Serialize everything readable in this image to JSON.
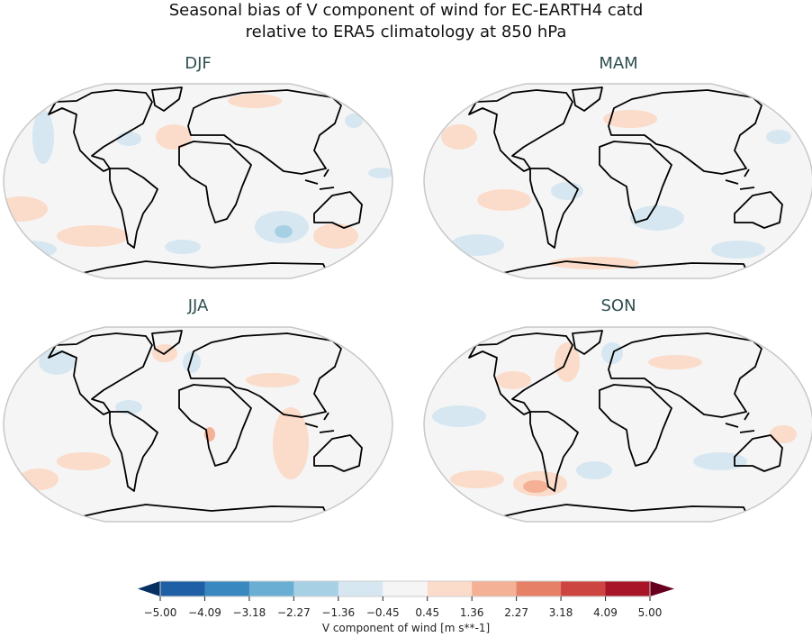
{
  "title_line1": "Seasonal bias of V component of wind for EC-EARTH4 catd",
  "title_line2": "relative to ERA5 climatology at 850 hPa",
  "panels": [
    {
      "title": "DJF"
    },
    {
      "title": "MAM"
    },
    {
      "title": "JJA"
    },
    {
      "title": "SON"
    }
  ],
  "colorbar": {
    "label": "V component of wind [m s**-1]",
    "ticks": [
      "−5.00",
      "−4.09",
      "−3.18",
      "−2.27",
      "−1.36",
      "−0.45",
      "0.45",
      "1.36",
      "2.27",
      "3.18",
      "4.09",
      "5.00"
    ],
    "colors": [
      "#1f5fa6",
      "#3a88c0",
      "#6aafd3",
      "#a8d0e4",
      "#d6e7f1",
      "#f5f5f5",
      "#fbdbc9",
      "#f5b195",
      "#e68066",
      "#cd4541",
      "#a81529"
    ],
    "under_color": "#053061",
    "over_color": "#67001f",
    "extend": "both"
  },
  "projection": "Robinson"
}
